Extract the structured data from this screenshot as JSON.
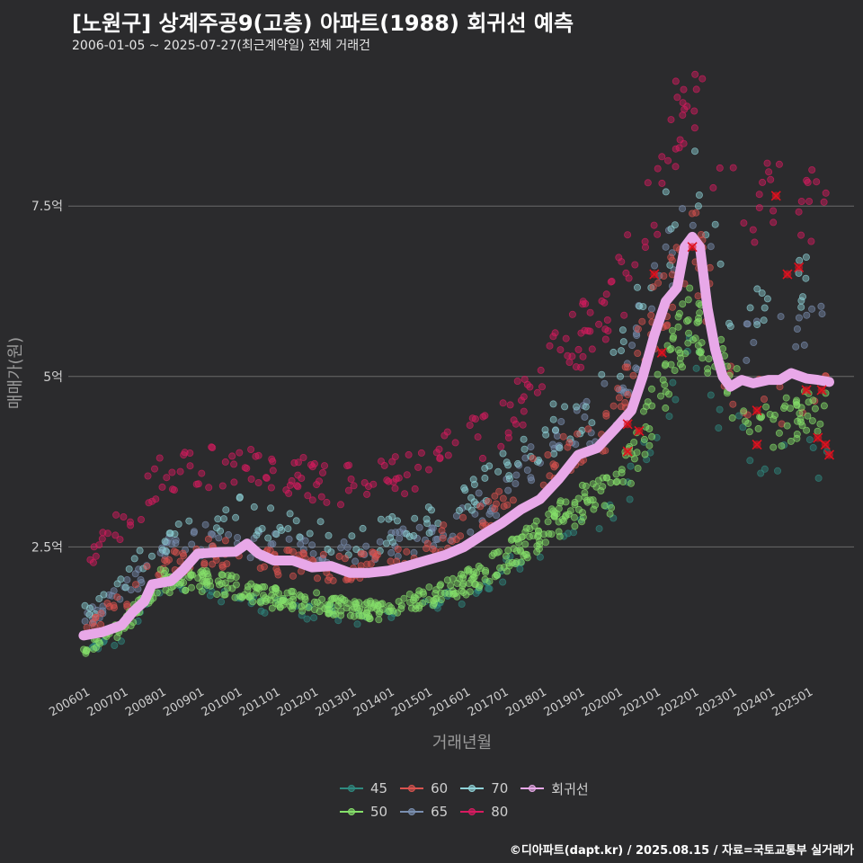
{
  "header": {
    "title": "[노원구] 상계주공9(고층) 아파트(1988) 회귀선 예측",
    "subtitle": "2006-01-05 ~ 2025-07-27(최근계약일) 전체 거래건"
  },
  "caption": "©디아파트(dapt.kr) / 2025.08.15 / 자료=국토교통부 실거래가",
  "chart_data": {
    "type": "scatter",
    "xlabel": "거래년월",
    "ylabel": "매매가(원)",
    "x_ticks": [
      "200601",
      "200701",
      "200801",
      "200901",
      "201001",
      "201101",
      "201201",
      "201301",
      "201401",
      "201501",
      "201601",
      "201701",
      "201801",
      "201901",
      "202001",
      "202101",
      "202201",
      "202301",
      "202401",
      "202501"
    ],
    "y_ticks": [
      {
        "value": 2.5,
        "label": "2.5억"
      },
      {
        "value": 5,
        "label": "5억"
      },
      {
        "value": 7.5,
        "label": "7.5억"
      }
    ],
    "ylim": [
      0.5,
      9.6
    ],
    "xlim": [
      2005.6,
      2026.25
    ],
    "grid": "horizontal",
    "legend_position": "bottom",
    "colors": {
      "45": "#2f8a80",
      "50": "#86e06a",
      "60": "#d9534f",
      "65": "#7a8fb0",
      "70": "#8fd3d8",
      "80": "#d81b60",
      "회귀선": "#e8a8e8",
      "background": "#2b2b2d",
      "highlight_x": "#e0101e"
    },
    "legend": [
      "45",
      "50",
      "60",
      "65",
      "70",
      "80",
      "회귀선"
    ],
    "series": [
      {
        "name": "45",
        "trend": [
          [
            2006.0,
            0.95
          ],
          [
            2007.0,
            1.2
          ],
          [
            2008.0,
            1.9
          ],
          [
            2009.0,
            1.9
          ],
          [
            2010.0,
            1.8
          ],
          [
            2011.0,
            1.6
          ],
          [
            2012.0,
            1.55
          ],
          [
            2013.0,
            1.5
          ],
          [
            2014.0,
            1.45
          ],
          [
            2015.0,
            1.6
          ],
          [
            2016.0,
            1.8
          ],
          [
            2017.0,
            2.1
          ],
          [
            2018.0,
            2.5
          ],
          [
            2019.0,
            2.8
          ],
          [
            2020.0,
            3.1
          ],
          [
            2021.0,
            4.1
          ],
          [
            2022.0,
            5.2
          ],
          [
            2023.0,
            4.3
          ],
          [
            2024.0,
            3.8
          ],
          [
            2025.0,
            3.9
          ],
          [
            2025.5,
            3.8
          ]
        ]
      },
      {
        "name": "50",
        "trend": [
          [
            2006.0,
            1.0
          ],
          [
            2007.0,
            1.3
          ],
          [
            2008.0,
            2.0
          ],
          [
            2009.0,
            2.0
          ],
          [
            2010.0,
            1.9
          ],
          [
            2011.0,
            1.75
          ],
          [
            2012.0,
            1.7
          ],
          [
            2013.0,
            1.6
          ],
          [
            2014.0,
            1.55
          ],
          [
            2015.0,
            1.75
          ],
          [
            2016.0,
            1.95
          ],
          [
            2017.0,
            2.3
          ],
          [
            2018.0,
            2.7
          ],
          [
            2019.0,
            3.1
          ],
          [
            2020.0,
            3.3
          ],
          [
            2021.0,
            4.5
          ],
          [
            2022.0,
            6.0
          ],
          [
            2023.0,
            4.8
          ],
          [
            2024.0,
            4.3
          ],
          [
            2025.0,
            4.5
          ],
          [
            2025.5,
            4.6
          ]
        ]
      },
      {
        "name": "60",
        "trend": [
          [
            2006.0,
            1.3
          ],
          [
            2007.0,
            1.7
          ],
          [
            2008.0,
            2.2
          ],
          [
            2009.0,
            2.4
          ],
          [
            2010.0,
            2.4
          ],
          [
            2011.0,
            2.3
          ],
          [
            2012.0,
            2.2
          ],
          [
            2013.0,
            2.2
          ],
          [
            2014.0,
            2.3
          ],
          [
            2015.0,
            2.5
          ],
          [
            2016.0,
            2.7
          ],
          [
            2017.0,
            3.1
          ],
          [
            2018.0,
            3.6
          ],
          [
            2019.0,
            4.0
          ],
          [
            2020.0,
            4.4
          ],
          [
            2021.0,
            5.9
          ],
          [
            2022.0,
            7.0
          ],
          [
            2023.0,
            5.0
          ],
          [
            2024.0,
            4.6
          ],
          [
            2025.0,
            4.8
          ],
          [
            2025.5,
            4.8
          ]
        ]
      },
      {
        "name": "65",
        "trend": [
          [
            2006.0,
            1.4
          ],
          [
            2007.0,
            1.8
          ],
          [
            2008.0,
            2.4
          ],
          [
            2009.0,
            2.6
          ],
          [
            2010.0,
            2.6
          ],
          [
            2011.0,
            2.5
          ],
          [
            2012.0,
            2.4
          ],
          [
            2013.0,
            2.4
          ],
          [
            2014.0,
            2.5
          ],
          [
            2015.0,
            2.7
          ],
          [
            2016.0,
            2.9
          ],
          [
            2017.0,
            3.3
          ],
          [
            2018.0,
            3.8
          ],
          [
            2019.0,
            4.2
          ],
          [
            2020.0,
            4.7
          ],
          [
            2021.0,
            6.3
          ],
          [
            2022.0,
            7.3
          ],
          [
            2023.0,
            5.6
          ],
          [
            2024.0,
            5.4
          ],
          [
            2025.0,
            5.6
          ],
          [
            2025.5,
            5.6
          ]
        ]
      },
      {
        "name": "70",
        "trend": [
          [
            2006.0,
            1.5
          ],
          [
            2007.0,
            2.0
          ],
          [
            2008.0,
            2.6
          ],
          [
            2009.0,
            2.9
          ],
          [
            2010.0,
            3.0
          ],
          [
            2011.0,
            2.8
          ],
          [
            2012.0,
            2.7
          ],
          [
            2013.0,
            2.6
          ],
          [
            2014.0,
            2.7
          ],
          [
            2015.0,
            2.9
          ],
          [
            2016.0,
            3.2
          ],
          [
            2017.0,
            3.6
          ],
          [
            2018.0,
            4.1
          ],
          [
            2019.0,
            4.5
          ],
          [
            2020.0,
            5.0
          ],
          [
            2021.0,
            6.8
          ],
          [
            2022.0,
            7.8
          ],
          [
            2023.0,
            6.2
          ],
          [
            2024.0,
            6.0
          ],
          [
            2025.0,
            6.3
          ],
          [
            2025.5,
            6.3
          ]
        ]
      },
      {
        "name": "80",
        "trend": [
          [
            2006.0,
            2.3
          ],
          [
            2007.0,
            2.8
          ],
          [
            2008.0,
            3.5
          ],
          [
            2009.0,
            3.7
          ],
          [
            2010.0,
            3.7
          ],
          [
            2011.0,
            3.6
          ],
          [
            2012.0,
            3.5
          ],
          [
            2013.0,
            3.4
          ],
          [
            2014.0,
            3.5
          ],
          [
            2015.0,
            3.7
          ],
          [
            2016.0,
            4.0
          ],
          [
            2017.0,
            4.3
          ],
          [
            2018.0,
            4.9
          ],
          [
            2019.0,
            5.6
          ],
          [
            2020.0,
            6.1
          ],
          [
            2021.0,
            7.6
          ],
          [
            2022.0,
            9.3
          ],
          [
            2023.0,
            7.6
          ],
          [
            2024.0,
            7.5
          ],
          [
            2025.0,
            7.6
          ],
          [
            2025.5,
            7.7
          ]
        ]
      },
      {
        "name": "회귀선",
        "points": [
          [
            2006.0,
            1.2
          ],
          [
            2006.5,
            1.25
          ],
          [
            2007.0,
            1.35
          ],
          [
            2007.3,
            1.55
          ],
          [
            2007.6,
            1.7
          ],
          [
            2007.8,
            1.95
          ],
          [
            2008.3,
            2.0
          ],
          [
            2008.6,
            2.15
          ],
          [
            2009.0,
            2.4
          ],
          [
            2009.5,
            2.42
          ],
          [
            2010.0,
            2.43
          ],
          [
            2010.3,
            2.55
          ],
          [
            2010.6,
            2.4
          ],
          [
            2011.0,
            2.3
          ],
          [
            2011.5,
            2.3
          ],
          [
            2012.0,
            2.2
          ],
          [
            2012.5,
            2.22
          ],
          [
            2013.0,
            2.12
          ],
          [
            2013.5,
            2.12
          ],
          [
            2014.0,
            2.15
          ],
          [
            2014.5,
            2.22
          ],
          [
            2015.0,
            2.3
          ],
          [
            2015.5,
            2.38
          ],
          [
            2016.0,
            2.5
          ],
          [
            2016.5,
            2.68
          ],
          [
            2017.0,
            2.85
          ],
          [
            2017.5,
            3.05
          ],
          [
            2018.0,
            3.2
          ],
          [
            2018.5,
            3.5
          ],
          [
            2019.0,
            3.85
          ],
          [
            2019.5,
            3.95
          ],
          [
            2020.0,
            4.25
          ],
          [
            2020.4,
            4.5
          ],
          [
            2020.7,
            5.0
          ],
          [
            2021.0,
            5.6
          ],
          [
            2021.3,
            6.1
          ],
          [
            2021.6,
            6.3
          ],
          [
            2021.8,
            6.9
          ],
          [
            2022.0,
            7.05
          ],
          [
            2022.2,
            6.9
          ],
          [
            2022.4,
            6.0
          ],
          [
            2022.6,
            5.4
          ],
          [
            2022.8,
            5.0
          ],
          [
            2023.0,
            4.85
          ],
          [
            2023.3,
            4.95
          ],
          [
            2023.6,
            4.9
          ],
          [
            2024.0,
            4.95
          ],
          [
            2024.3,
            4.95
          ],
          [
            2024.6,
            5.05
          ],
          [
            2025.0,
            4.97
          ],
          [
            2025.3,
            4.95
          ],
          [
            2025.6,
            4.92
          ]
        ]
      }
    ],
    "highlighted_recent_trades": [
      [
        2020.3,
        4.3
      ],
      [
        2020.6,
        4.2
      ],
      [
        2020.3,
        3.9
      ],
      [
        2021.0,
        6.5
      ],
      [
        2021.2,
        5.35
      ],
      [
        2022.0,
        6.9
      ],
      [
        2023.7,
        4.5
      ],
      [
        2023.7,
        4.0
      ],
      [
        2024.2,
        7.65
      ],
      [
        2024.5,
        6.5
      ],
      [
        2024.8,
        6.6
      ],
      [
        2025.0,
        4.8
      ],
      [
        2025.3,
        4.1
      ],
      [
        2025.5,
        4.0
      ],
      [
        2025.6,
        3.85
      ],
      [
        2025.4,
        4.8
      ]
    ]
  }
}
